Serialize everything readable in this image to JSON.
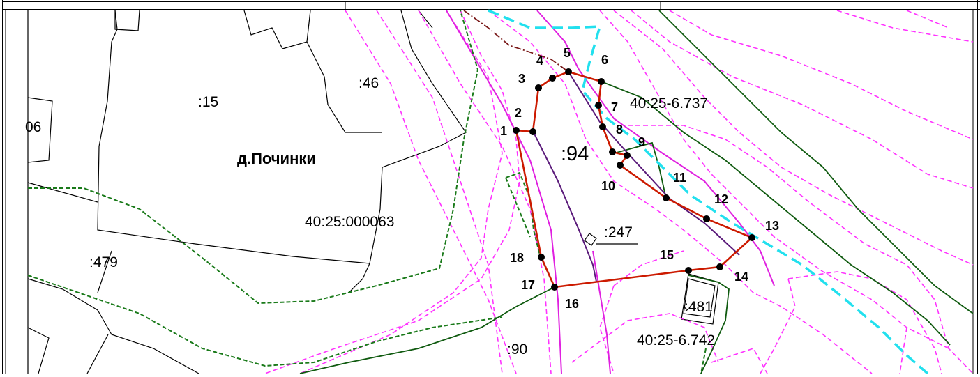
{
  "map": {
    "settlement_name": "д.Починки",
    "block_number": "40:25:000063",
    "main_parcel": ":94",
    "parcels": [
      ":15",
      ":46",
      ":479",
      ":247",
      ":481",
      ":90",
      "06"
    ],
    "cadastral_refs": [
      "40:25-6.737",
      "40:25-6.742"
    ],
    "boundary_points": [
      "1",
      "2",
      "3",
      "4",
      "5",
      "6",
      "7",
      "8",
      "9",
      "10",
      "11",
      "12",
      "13",
      "14",
      "15",
      "16",
      "17",
      "18"
    ],
    "line_colors": {
      "boundary": "#cc1a00",
      "magenta_dashed": "#ff33ff",
      "magenta_solid": "#e020e0",
      "green_dashed": "#1a7a1a",
      "green_solid": "#0f5a0f",
      "cyan_dashed": "#22e0ee",
      "purple": "#5a1a7a",
      "brown_dashdot": "#7a1a1a",
      "black": "#000000"
    }
  }
}
